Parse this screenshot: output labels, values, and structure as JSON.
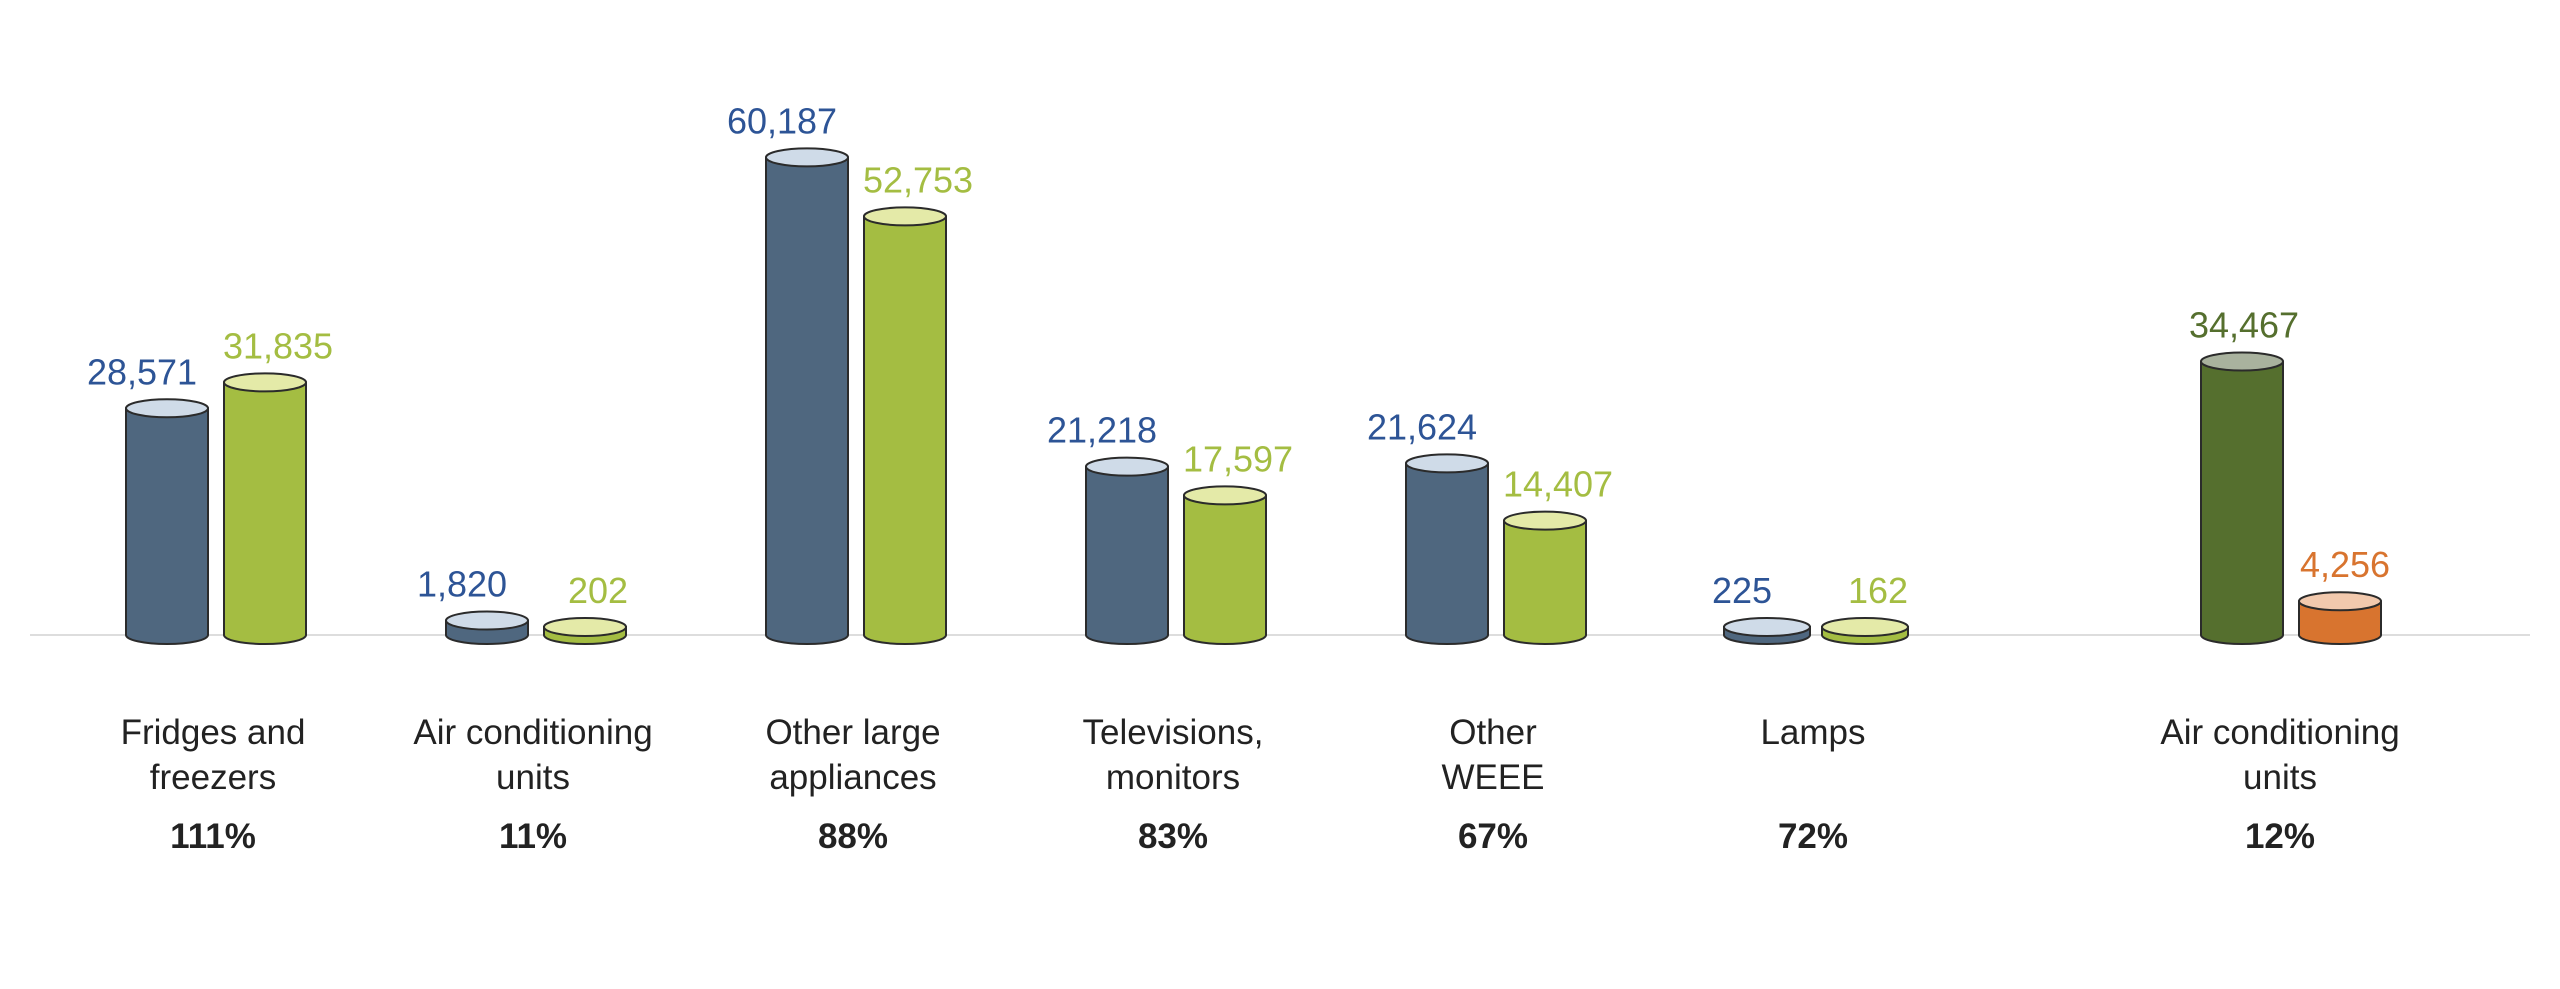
{
  "chart_data": {
    "type": "bar",
    "style": "3d-cylinder",
    "title": "",
    "xlabel": "",
    "ylabel": "",
    "ylim": [
      0,
      62000
    ],
    "grid": false,
    "colors": {
      "series_a_body": "#4f677f",
      "series_a_top": "#cfdbe8",
      "series_a_label": "#2d5496",
      "series_b_body": "#a4bd42",
      "series_b_top": "#e4eaa8",
      "series_b_label": "#a4bd42",
      "series_c_body": "#556f2e",
      "series_c_top": "#a9b29e",
      "series_c_label": "#556f2e",
      "series_d_body": "#d8742f",
      "series_d_top": "#f2c9ad",
      "series_d_label": "#d8742f",
      "baseline": "#dddddd",
      "text": "#222222"
    },
    "groups": [
      {
        "label_lines": [
          "Fridges and",
          "freezers"
        ],
        "percent": "111%",
        "bars": [
          {
            "value": 28571,
            "label": "28,571",
            "palette": "a"
          },
          {
            "value": 31835,
            "label": "31,835",
            "palette": "b"
          }
        ]
      },
      {
        "label_lines": [
          "Air conditioning",
          "units"
        ],
        "percent": "11%",
        "bars": [
          {
            "value": 1820,
            "label": "1,820",
            "palette": "a"
          },
          {
            "value": 202,
            "label": "202",
            "palette": "b"
          }
        ]
      },
      {
        "label_lines": [
          "Other large",
          "appliances"
        ],
        "percent": "88%",
        "bars": [
          {
            "value": 60187,
            "label": "60,187",
            "palette": "a"
          },
          {
            "value": 52753,
            "label": "52,753",
            "palette": "b"
          }
        ]
      },
      {
        "label_lines": [
          "Televisions,",
          "monitors"
        ],
        "percent": "83%",
        "bars": [
          {
            "value": 21218,
            "label": "21,218",
            "palette": "a"
          },
          {
            "value": 17597,
            "label": "17,597",
            "palette": "b"
          }
        ]
      },
      {
        "label_lines": [
          "Other",
          "WEEE"
        ],
        "percent": "67%",
        "bars": [
          {
            "value": 21624,
            "label": "21,624",
            "palette": "a"
          },
          {
            "value": 14407,
            "label": "14,407",
            "palette": "b"
          }
        ]
      },
      {
        "label_lines": [
          "Lamps"
        ],
        "percent": "72%",
        "bars": [
          {
            "value": 225,
            "label": "225",
            "palette": "a"
          },
          {
            "value": 162,
            "label": "162",
            "palette": "b"
          }
        ]
      },
      {
        "label_lines": [
          "Air conditioning",
          "units"
        ],
        "percent": "12%",
        "bars": [
          {
            "value": 34467,
            "label": "34,467",
            "palette": "c"
          },
          {
            "value": 4256,
            "label": "4,256",
            "palette": "d"
          }
        ]
      }
    ]
  }
}
